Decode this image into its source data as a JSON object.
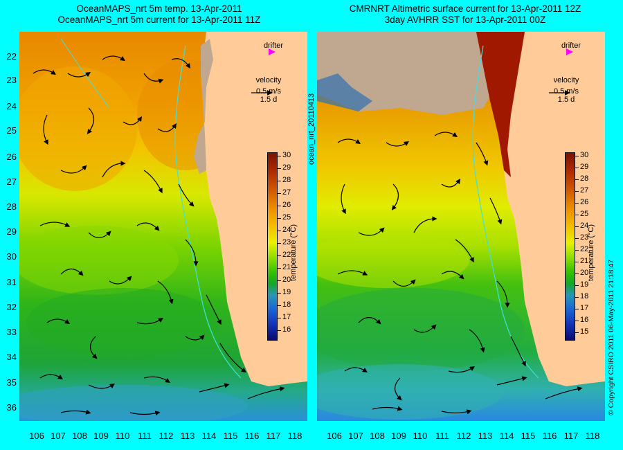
{
  "left_panel": {
    "title_line1": "OceanMAPS_nrt 5m temp. 13-Apr-2011",
    "title_line2": "OceanMAPS_nrt 5m current for 13-Apr-2011 11Z",
    "drifter_label": "drifter",
    "velocity_label": "velocity",
    "velocity_scale": "0.5 m/s",
    "velocity_time": "1.5 d",
    "colorbar_label": "temperature (°C)",
    "colorbar_ticks": [
      "30",
      "29",
      "28",
      "27",
      "26",
      "25",
      "24",
      "23",
      "22",
      "21",
      "20",
      "19",
      "18",
      "17",
      "16"
    ]
  },
  "right_panel": {
    "title_line1": "CMRNRT Altimetric surface current for 13-Apr-2011 12Z",
    "title_line2": "3day AVHRR SST for 13-Apr-2011 00Z",
    "drifter_label": "drifter",
    "velocity_label": "velocity",
    "velocity_scale": "0.5 m/s",
    "velocity_time": "1.5 d",
    "colorbar_label": "temperature (°C)",
    "colorbar_ticks": [
      "30",
      "29",
      "28",
      "27",
      "26",
      "25",
      "24",
      "23",
      "22",
      "21",
      "20",
      "19",
      "18",
      "17",
      "16",
      "15"
    ]
  },
  "side_labels": {
    "run_id": "ocean_nrt_20110413",
    "copyright": "© Copyright CSIRO 2011  06-May-2011 21:18:47"
  },
  "latitude_labels": [
    "22",
    "23",
    "24",
    "25",
    "26",
    "27",
    "28",
    "29",
    "30",
    "31",
    "32",
    "33",
    "34",
    "35",
    "36"
  ],
  "longitude_labels": [
    "106",
    "107",
    "108",
    "109",
    "110",
    "111",
    "112",
    "113",
    "114",
    "115",
    "116",
    "117",
    "118"
  ],
  "colors": {
    "background": "#00ffff",
    "land": "#ffcc99",
    "drifter_marker": "#ff00ff",
    "bathymetry_contour": "#40e0e0"
  }
}
